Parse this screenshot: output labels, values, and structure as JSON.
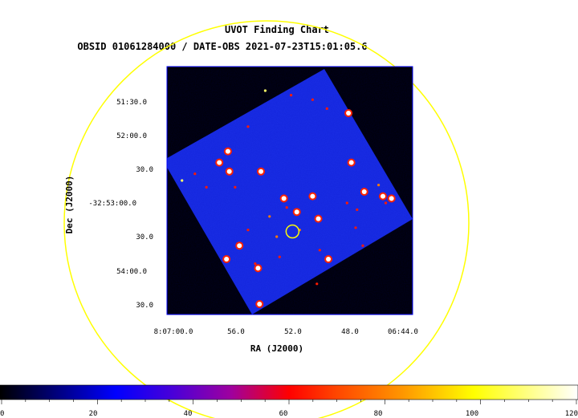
{
  "chart_data": {
    "type": "heatmap",
    "title": "UVOT Finding Chart",
    "subtitle": "OBSID 01061284000 / DATE-OBS 2021-07-23T15:01:05.6",
    "xlabel": "RA (J2000)",
    "ylabel": "Dec (J2000)",
    "x_ticks": [
      "8:07:00.0",
      "56.0",
      "52.0",
      "48.0",
      "06:44.0"
    ],
    "y_ticks": [
      "51:30.0",
      "52:00.0",
      "30.0",
      "-32:53:00.0",
      "30.0",
      "54:00.0",
      "30.0"
    ],
    "colorbar": {
      "ticks": [
        "0",
        "20",
        "40",
        "60",
        "80",
        "100",
        "120"
      ],
      "range": [
        0,
        120
      ],
      "colors": [
        "#000000",
        "#0000ff",
        "#ff0000",
        "#ffff00",
        "#ffffff"
      ]
    },
    "sources": [
      {
        "ra_s": 53.6,
        "dec_s": 10,
        "v": 100
      },
      {
        "ra_s": 51.8,
        "dec_s": 12,
        "v": 70
      },
      {
        "ra_s": 50.3,
        "dec_s": 14,
        "v": 65
      },
      {
        "ra_s": 47.8,
        "dec_s": 20,
        "v": 110
      },
      {
        "ra_s": 49.3,
        "dec_s": 18,
        "v": 70
      },
      {
        "ra_s": 47.6,
        "dec_s": 42,
        "v": 120
      },
      {
        "ra_s": 54.8,
        "dec_s": 26,
        "v": 70
      },
      {
        "ra_s": 56.2,
        "dec_s": 37,
        "v": 120
      },
      {
        "ra_s": 56.8,
        "dec_s": 42,
        "v": 115
      },
      {
        "ra_s": 56.1,
        "dec_s": 46,
        "v": 115
      },
      {
        "ra_s": 53.9,
        "dec_s": 46,
        "v": 120
      },
      {
        "ra_s": 52.3,
        "dec_s": 58,
        "v": 115
      },
      {
        "ra_s": 50.3,
        "dec_s": 57,
        "v": 120
      },
      {
        "ra_s": 46.7,
        "dec_s": 55,
        "v": 115
      },
      {
        "ra_s": 45.7,
        "dec_s": 52,
        "v": 80
      },
      {
        "ra_s": 45.4,
        "dec_s": 57,
        "v": 120
      },
      {
        "ra_s": 44.8,
        "dec_s": 58,
        "v": 120
      },
      {
        "ra_s": 45.2,
        "dec_s": 60,
        "v": 70
      },
      {
        "ra_s": 47.9,
        "dec_s": 60,
        "v": 60
      },
      {
        "ra_s": 59.4,
        "dec_s": 50,
        "v": 100
      },
      {
        "ra_s": 55.7,
        "dec_s": 53,
        "v": 60
      },
      {
        "ra_s": 52.1,
        "dec_s": 62,
        "v": 70
      },
      {
        "ra_s": 51.4,
        "dec_s": 64,
        "v": 115
      },
      {
        "ra_s": 53.3,
        "dec_s": 66,
        "v": 80
      },
      {
        "ra_s": 49.9,
        "dec_s": 67,
        "v": 115
      },
      {
        "ra_s": 51.2,
        "dec_s": 72,
        "v": 80
      },
      {
        "ra_s": 52.8,
        "dec_s": 75,
        "v": 75
      },
      {
        "ra_s": 54.8,
        "dec_s": 72,
        "v": 70
      },
      {
        "ra_s": 55.4,
        "dec_s": 79,
        "v": 115
      },
      {
        "ra_s": 52.6,
        "dec_s": 84,
        "v": 70
      },
      {
        "ra_s": 49.8,
        "dec_s": 81,
        "v": 70
      },
      {
        "ra_s": 49.2,
        "dec_s": 85,
        "v": 110
      },
      {
        "ra_s": 46.8,
        "dec_s": 79,
        "v": 70
      },
      {
        "ra_s": 56.3,
        "dec_s": 85,
        "v": 115
      },
      {
        "ra_s": 54.1,
        "dec_s": 89,
        "v": 120
      },
      {
        "ra_s": 54.3,
        "dec_s": 87,
        "v": 70
      },
      {
        "ra_s": 50.0,
        "dec_s": 96,
        "v": 70
      },
      {
        "ra_s": 54.0,
        "dec_s": 105,
        "v": 115
      },
      {
        "ra_s": 47.3,
        "dec_s": 71,
        "v": 70
      },
      {
        "ra_s": 47.2,
        "dec_s": 63,
        "v": 70
      },
      {
        "ra_s": 57.7,
        "dec_s": 53,
        "v": 65
      },
      {
        "ra_s": 58.5,
        "dec_s": 47,
        "v": 70
      }
    ],
    "target_marker": {
      "ra_s": 51.7,
      "dec_s": 72.7
    },
    "fov_circle": "yellow"
  }
}
